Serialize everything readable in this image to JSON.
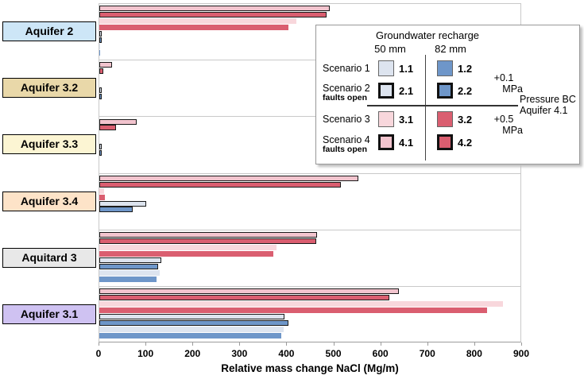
{
  "chart_data": {
    "type": "bar",
    "orientation": "horizontal",
    "title": "",
    "xlabel": "Relative mass change NaCl (Mg/m)",
    "xlim": [
      0,
      900
    ],
    "xticks": [
      0,
      100,
      200,
      300,
      400,
      500,
      600,
      700,
      800,
      900
    ],
    "grid": "group separator lines, framed plot",
    "legend_position": "top-right inset",
    "categories": [
      "Aquifer 2",
      "Aquifer 3.2",
      "Aquifer 3.3",
      "Aquifer 3.4",
      "Aquitard 3",
      "Aquifer 3.1"
    ],
    "bar_order_top_to_bottom": [
      "4.1",
      "4.2",
      "3.1",
      "3.2",
      "2.1",
      "2.2",
      "1.1",
      "1.2"
    ],
    "series": [
      {
        "name": "1.1",
        "label": "Scenario 1, 50 mm recharge",
        "values": [
          1,
          0,
          0,
          0,
          128,
          393
        ]
      },
      {
        "name": "1.2",
        "label": "Scenario 1, 82 mm recharge",
        "values": [
          2,
          0,
          0,
          0,
          121,
          388
        ]
      },
      {
        "name": "2.1",
        "label": "Scenario 2 faults open, 50 mm recharge",
        "values": [
          2,
          1,
          1,
          99,
          132,
          395
        ]
      },
      {
        "name": "2.2",
        "label": "Scenario 2 faults open, 82 mm recharge",
        "values": [
          2,
          1,
          1,
          71,
          125,
          403
        ]
      },
      {
        "name": "3.1",
        "label": "Scenario 3, 50 mm recharge",
        "values": [
          420,
          0,
          0,
          10,
          377,
          859
        ]
      },
      {
        "name": "3.2",
        "label": "Scenario 3, 82 mm recharge",
        "values": [
          403,
          0,
          0,
          11,
          371,
          825
        ]
      },
      {
        "name": "4.1",
        "label": "Scenario 4 faults open, 50 mm recharge",
        "values": [
          490,
          27,
          80,
          551,
          463,
          637
        ]
      },
      {
        "name": "4.2",
        "label": "Scenario 4 faults open, 82 mm recharge",
        "values": [
          484,
          9,
          36,
          515,
          461,
          617
        ]
      }
    ]
  },
  "styles": {
    "scenario_fills": {
      "1.1": "#dde4ef",
      "1.2": "#6e96c9",
      "2.1": "#dde4ef",
      "2.2": "#6e96c9",
      "3.1": "#f8d7dc",
      "3.2": "#da5e70",
      "4.1": "#f2c4ce",
      "4.2": "#da5e70"
    },
    "scenario_outlined": {
      "1.1": false,
      "1.2": false,
      "2.1": true,
      "2.2": true,
      "3.1": false,
      "3.2": false,
      "4.1": true,
      "4.2": true
    },
    "category_fills": [
      "#cde6f7",
      "#e9d8a9",
      "#fcf5d3",
      "#fde3c8",
      "#e8e8e8",
      "#cfc2f2"
    ],
    "bar_outline": "#1a1a1a",
    "grid_color": "#c9c9c9",
    "axis_color": "#9b9b9b"
  },
  "legend": {
    "title": "Groundwater recharge",
    "columns": [
      "50 mm",
      "82 mm"
    ],
    "rows": [
      {
        "label": "Scenario 1",
        "sublabel": "",
        "left": "1.1",
        "right": "1.2"
      },
      {
        "label": "Scenario 2",
        "sublabel": "faults open",
        "left": "2.1",
        "right": "2.2"
      },
      {
        "label": "Scenario 3",
        "sublabel": "",
        "left": "3.1",
        "right": "3.2"
      },
      {
        "label": "Scenario 4",
        "sublabel": "faults open",
        "left": "4.1",
        "right": "4.2"
      }
    ],
    "pressure_annotations": [
      {
        "value": "+0.1",
        "unit": "MPa"
      },
      {
        "value": "+0.5",
        "unit": "MPa"
      }
    ],
    "pressure_bc": {
      "line1": "Pressure BC",
      "line2": "Aquifer 4.1"
    }
  }
}
